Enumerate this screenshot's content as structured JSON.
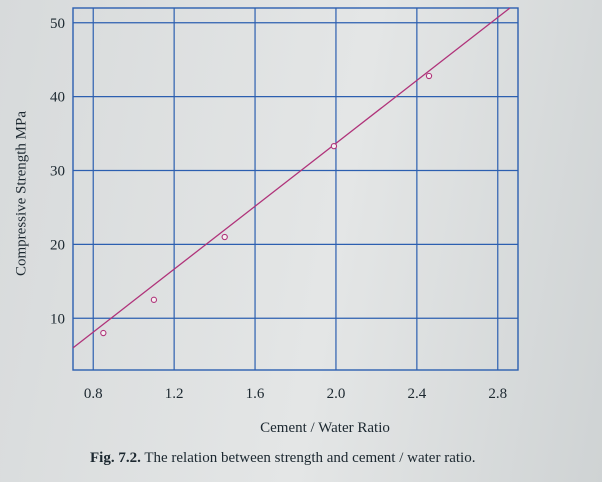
{
  "chart_data": {
    "type": "line",
    "xlabel": "Cement / Water Ratio",
    "ylabel": "Compressive Strength MPa",
    "xlim": [
      0.7,
      2.9
    ],
    "ylim": [
      3,
      52
    ],
    "x_ticks": [
      "0.8",
      "1.2",
      "1.6",
      "2.0",
      "2.4",
      "2.8"
    ],
    "y_ticks": [
      "10",
      "20",
      "30",
      "40",
      "50"
    ],
    "grid": true,
    "fit_line": {
      "x": [
        0.7,
        2.86
      ],
      "y": [
        6.0,
        52.0
      ]
    },
    "points": [
      {
        "x": 0.85,
        "y": 8.0
      },
      {
        "x": 1.1,
        "y": 12.5
      },
      {
        "x": 1.45,
        "y": 21.0
      },
      {
        "x": 1.99,
        "y": 33.3
      },
      {
        "x": 2.46,
        "y": 42.8
      }
    ],
    "colors": {
      "line": "#b0337a",
      "grid": "#2c5fb0",
      "marker": "#b0337a"
    }
  },
  "caption": {
    "label": "Fig. 7.2.",
    "text": "The relation between strength and cement / water ratio."
  }
}
